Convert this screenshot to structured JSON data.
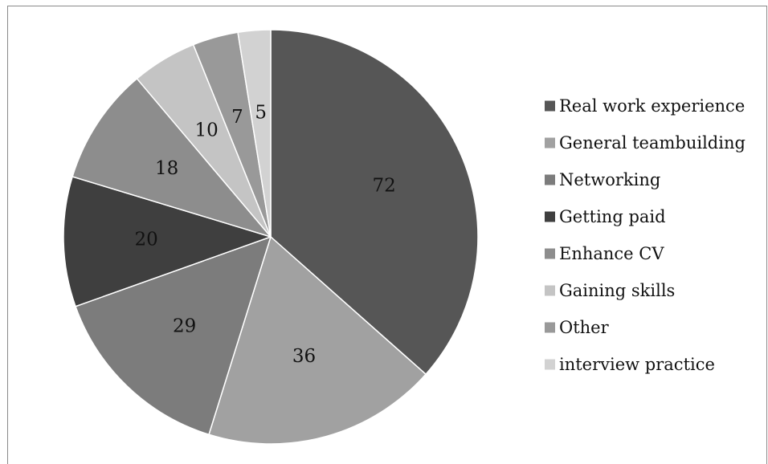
{
  "chart_data": {
    "type": "pie",
    "title": "",
    "start_angle": "12 o'clock",
    "direction": "clockwise",
    "legend_position": "right",
    "data_labels": "inside",
    "slices": [
      {
        "label": "Real work experience",
        "value": 72,
        "color": "#565656"
      },
      {
        "label": "General teambuilding",
        "value": 36,
        "color": "#a1a1a1"
      },
      {
        "label": "Networking",
        "value": 29,
        "color": "#7c7c7c"
      },
      {
        "label": "Getting paid",
        "value": 20,
        "color": "#3f3f3f"
      },
      {
        "label": "Enhance CV",
        "value": 18,
        "color": "#8d8d8d"
      },
      {
        "label": "Gaining skills",
        "value": 10,
        "color": "#c4c4c4"
      },
      {
        "label": "Other",
        "value": 7,
        "color": "#999999"
      },
      {
        "label": "interview practice",
        "value": 5,
        "color": "#d2d2d2"
      }
    ]
  }
}
